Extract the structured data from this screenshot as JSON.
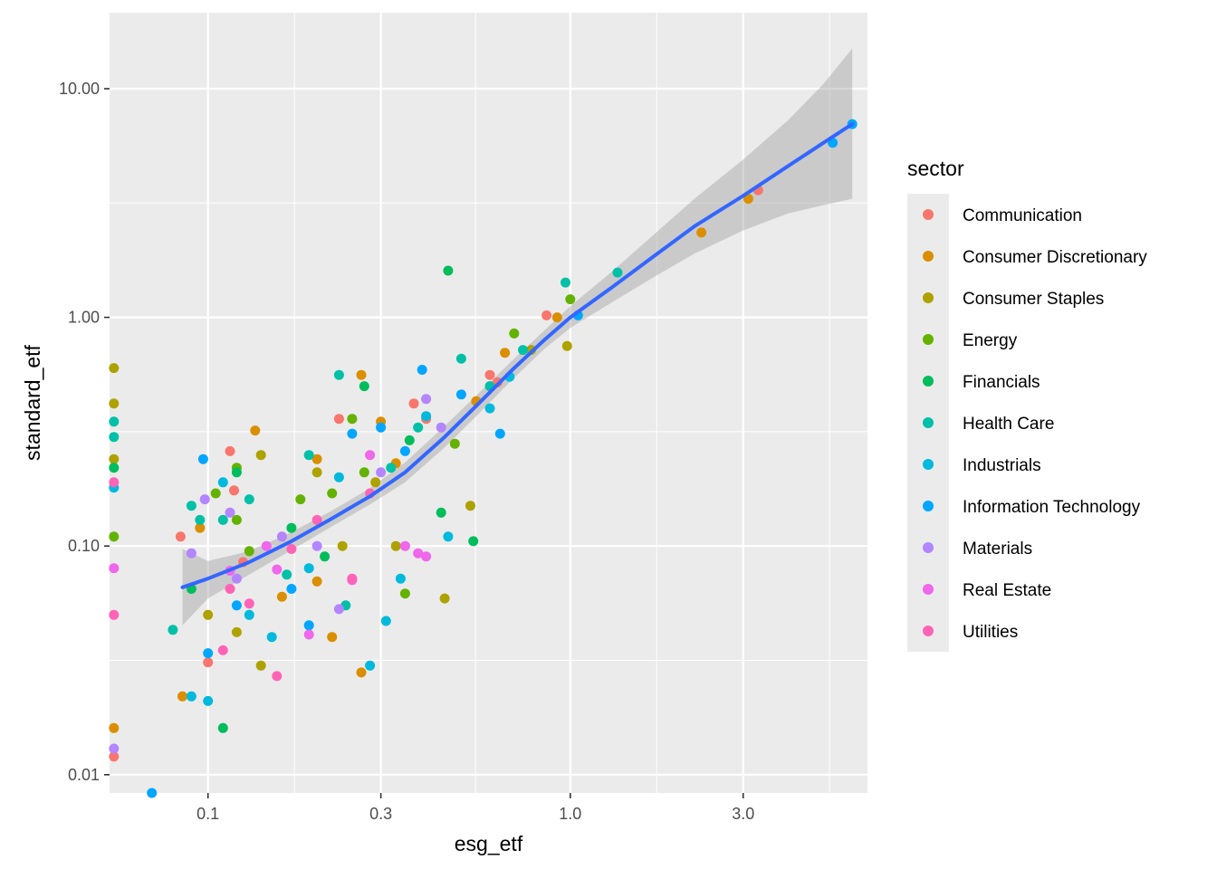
{
  "chart_data": {
    "type": "scatter",
    "xlabel": "esg_etf",
    "ylabel": "standard_etf",
    "x_scale": "log10",
    "y_scale": "log10",
    "xlim": [
      0.0535,
      6.61
    ],
    "ylim": [
      0.00832,
      21.5
    ],
    "x_ticks": [
      {
        "value": 0.1,
        "label": "0.1"
      },
      {
        "value": 0.3,
        "label": "0.3"
      },
      {
        "value": 1.0,
        "label": "1.0"
      },
      {
        "value": 3.0,
        "label": "3.0"
      }
    ],
    "y_ticks": [
      {
        "value": 0.01,
        "label": "0.01"
      },
      {
        "value": 0.1,
        "label": "0.10"
      },
      {
        "value": 1.0,
        "label": "1.00"
      },
      {
        "value": 10.0,
        "label": "10.00"
      }
    ],
    "grid": true,
    "background": "#ebebeb",
    "legend": {
      "title": "sector",
      "position": "right",
      "entries": [
        {
          "label": "Communication",
          "color": "#F8766D"
        },
        {
          "label": "Consumer Discretionary",
          "color": "#DB8E00"
        },
        {
          "label": "Consumer Staples",
          "color": "#AEA200"
        },
        {
          "label": "Energy",
          "color": "#64B200"
        },
        {
          "label": "Financials",
          "color": "#00BD5C"
        },
        {
          "label": "Health Care",
          "color": "#00C1A7"
        },
        {
          "label": "Industrials",
          "color": "#00BADE"
        },
        {
          "label": "Information Technology",
          "color": "#00A6FF"
        },
        {
          "label": "Materials",
          "color": "#B385FF"
        },
        {
          "label": "Real Estate",
          "color": "#EF67EB"
        },
        {
          "label": "Utilities",
          "color": "#FF63B6"
        }
      ]
    },
    "smooth": {
      "method": "loess",
      "color": "#3366FF",
      "band_color": "#999999",
      "points": [
        {
          "x": 0.085,
          "y": 0.066,
          "lo": 0.045,
          "hi": 0.097
        },
        {
          "x": 0.1,
          "y": 0.072,
          "lo": 0.059,
          "hi": 0.086
        },
        {
          "x": 0.13,
          "y": 0.085,
          "lo": 0.075,
          "hi": 0.095
        },
        {
          "x": 0.17,
          "y": 0.105,
          "lo": 0.096,
          "hi": 0.115
        },
        {
          "x": 0.22,
          "y": 0.132,
          "lo": 0.122,
          "hi": 0.143
        },
        {
          "x": 0.28,
          "y": 0.165,
          "lo": 0.152,
          "hi": 0.179
        },
        {
          "x": 0.35,
          "y": 0.21,
          "lo": 0.19,
          "hi": 0.232
        },
        {
          "x": 0.45,
          "y": 0.3,
          "lo": 0.27,
          "hi": 0.335
        },
        {
          "x": 0.55,
          "y": 0.41,
          "lo": 0.37,
          "hi": 0.455
        },
        {
          "x": 0.7,
          "y": 0.6,
          "lo": 0.545,
          "hi": 0.66
        },
        {
          "x": 0.85,
          "y": 0.8,
          "lo": 0.73,
          "hi": 0.88
        },
        {
          "x": 1.0,
          "y": 1.0,
          "lo": 0.9,
          "hi": 1.12
        },
        {
          "x": 1.3,
          "y": 1.35,
          "lo": 1.16,
          "hi": 1.58
        },
        {
          "x": 1.7,
          "y": 1.85,
          "lo": 1.5,
          "hi": 2.3
        },
        {
          "x": 2.2,
          "y": 2.5,
          "lo": 1.9,
          "hi": 3.3
        },
        {
          "x": 3.0,
          "y": 3.4,
          "lo": 2.4,
          "hi": 4.9
        },
        {
          "x": 4.0,
          "y": 4.6,
          "lo": 2.85,
          "hi": 7.3
        },
        {
          "x": 5.0,
          "y": 5.8,
          "lo": 3.1,
          "hi": 10.5
        },
        {
          "x": 6.0,
          "y": 7.0,
          "lo": 3.3,
          "hi": 15.0
        }
      ]
    },
    "series": [
      {
        "name": "Communication",
        "color": "#F8766D",
        "points": [
          {
            "x": 0.084,
            "y": 0.11
          },
          {
            "x": 0.115,
            "y": 0.26
          },
          {
            "x": 0.118,
            "y": 0.175
          },
          {
            "x": 0.1,
            "y": 0.031
          },
          {
            "x": 0.23,
            "y": 0.36
          },
          {
            "x": 0.37,
            "y": 0.42
          },
          {
            "x": 0.6,
            "y": 0.56
          },
          {
            "x": 0.63,
            "y": 0.52
          },
          {
            "x": 0.86,
            "y": 1.02
          },
          {
            "x": 3.3,
            "y": 3.6
          },
          {
            "x": 0.125,
            "y": 0.085
          },
          {
            "x": 0.4,
            "y": 0.36
          },
          {
            "x": 0.055,
            "y": 0.012
          }
        ]
      },
      {
        "name": "Consumer Discretionary",
        "color": "#DB8E00",
        "points": [
          {
            "x": 0.085,
            "y": 0.022
          },
          {
            "x": 0.095,
            "y": 0.12
          },
          {
            "x": 0.135,
            "y": 0.32
          },
          {
            "x": 0.16,
            "y": 0.06
          },
          {
            "x": 0.2,
            "y": 0.24
          },
          {
            "x": 0.2,
            "y": 0.07
          },
          {
            "x": 0.22,
            "y": 0.04
          },
          {
            "x": 0.265,
            "y": 0.028
          },
          {
            "x": 0.265,
            "y": 0.56
          },
          {
            "x": 0.3,
            "y": 0.35
          },
          {
            "x": 0.33,
            "y": 0.23
          },
          {
            "x": 0.55,
            "y": 0.43
          },
          {
            "x": 0.66,
            "y": 0.7
          },
          {
            "x": 0.92,
            "y": 1.0
          },
          {
            "x": 2.3,
            "y": 2.35
          },
          {
            "x": 3.1,
            "y": 3.3
          },
          {
            "x": 0.055,
            "y": 0.016
          }
        ]
      },
      {
        "name": "Consumer Staples",
        "color": "#AEA200",
        "points": [
          {
            "x": 0.1,
            "y": 0.05
          },
          {
            "x": 0.12,
            "y": 0.042
          },
          {
            "x": 0.14,
            "y": 0.25
          },
          {
            "x": 0.14,
            "y": 0.03
          },
          {
            "x": 0.2,
            "y": 0.21
          },
          {
            "x": 0.235,
            "y": 0.1
          },
          {
            "x": 0.29,
            "y": 0.19
          },
          {
            "x": 0.33,
            "y": 0.1
          },
          {
            "x": 0.45,
            "y": 0.059
          },
          {
            "x": 0.53,
            "y": 0.15
          },
          {
            "x": 0.78,
            "y": 0.72
          },
          {
            "x": 0.98,
            "y": 0.75
          },
          {
            "x": 0.055,
            "y": 0.6
          },
          {
            "x": 0.055,
            "y": 0.42
          },
          {
            "x": 0.055,
            "y": 0.24
          }
        ]
      },
      {
        "name": "Energy",
        "color": "#64B200",
        "points": [
          {
            "x": 0.105,
            "y": 0.17
          },
          {
            "x": 0.12,
            "y": 0.22
          },
          {
            "x": 0.12,
            "y": 0.13
          },
          {
            "x": 0.13,
            "y": 0.095
          },
          {
            "x": 0.18,
            "y": 0.16
          },
          {
            "x": 0.22,
            "y": 0.17
          },
          {
            "x": 0.25,
            "y": 0.36
          },
          {
            "x": 0.27,
            "y": 0.21
          },
          {
            "x": 0.35,
            "y": 0.062
          },
          {
            "x": 0.48,
            "y": 0.28
          },
          {
            "x": 0.7,
            "y": 0.85
          },
          {
            "x": 1.0,
            "y": 1.2
          },
          {
            "x": 0.055,
            "y": 0.11
          }
        ]
      },
      {
        "name": "Financials",
        "color": "#00BD5C",
        "points": [
          {
            "x": 0.09,
            "y": 0.065
          },
          {
            "x": 0.11,
            "y": 0.016
          },
          {
            "x": 0.12,
            "y": 0.21
          },
          {
            "x": 0.17,
            "y": 0.12
          },
          {
            "x": 0.21,
            "y": 0.09
          },
          {
            "x": 0.27,
            "y": 0.5
          },
          {
            "x": 0.36,
            "y": 0.29
          },
          {
            "x": 0.44,
            "y": 0.14
          },
          {
            "x": 0.46,
            "y": 1.6
          },
          {
            "x": 0.54,
            "y": 0.105
          },
          {
            "x": 0.055,
            "y": 0.22
          }
        ]
      },
      {
        "name": "Health Care",
        "color": "#00C1A7",
        "points": [
          {
            "x": 0.08,
            "y": 0.043
          },
          {
            "x": 0.09,
            "y": 0.15
          },
          {
            "x": 0.095,
            "y": 0.13
          },
          {
            "x": 0.11,
            "y": 0.13
          },
          {
            "x": 0.13,
            "y": 0.16
          },
          {
            "x": 0.165,
            "y": 0.075
          },
          {
            "x": 0.19,
            "y": 0.25
          },
          {
            "x": 0.23,
            "y": 0.56
          },
          {
            "x": 0.24,
            "y": 0.055
          },
          {
            "x": 0.32,
            "y": 0.22
          },
          {
            "x": 0.38,
            "y": 0.33
          },
          {
            "x": 0.5,
            "y": 0.66
          },
          {
            "x": 0.6,
            "y": 0.5
          },
          {
            "x": 0.74,
            "y": 0.72
          },
          {
            "x": 0.97,
            "y": 1.42
          },
          {
            "x": 1.35,
            "y": 1.57
          },
          {
            "x": 0.055,
            "y": 0.35
          },
          {
            "x": 0.055,
            "y": 0.3
          }
        ]
      },
      {
        "name": "Industrials",
        "color": "#00BADE",
        "points": [
          {
            "x": 0.09,
            "y": 0.022
          },
          {
            "x": 0.1,
            "y": 0.021
          },
          {
            "x": 0.11,
            "y": 0.19
          },
          {
            "x": 0.13,
            "y": 0.05
          },
          {
            "x": 0.15,
            "y": 0.04
          },
          {
            "x": 0.19,
            "y": 0.08
          },
          {
            "x": 0.23,
            "y": 0.2
          },
          {
            "x": 0.28,
            "y": 0.03
          },
          {
            "x": 0.31,
            "y": 0.047
          },
          {
            "x": 0.34,
            "y": 0.072
          },
          {
            "x": 0.4,
            "y": 0.37
          },
          {
            "x": 0.46,
            "y": 0.11
          },
          {
            "x": 0.6,
            "y": 0.4
          },
          {
            "x": 0.68,
            "y": 0.55
          },
          {
            "x": 0.055,
            "y": 0.18
          }
        ]
      },
      {
        "name": "Information Technology",
        "color": "#00A6FF",
        "points": [
          {
            "x": 0.097,
            "y": 0.24
          },
          {
            "x": 0.1,
            "y": 0.034
          },
          {
            "x": 0.12,
            "y": 0.055
          },
          {
            "x": 0.17,
            "y": 0.065
          },
          {
            "x": 0.19,
            "y": 0.045
          },
          {
            "x": 0.25,
            "y": 0.31
          },
          {
            "x": 0.3,
            "y": 0.33
          },
          {
            "x": 0.35,
            "y": 0.26
          },
          {
            "x": 0.39,
            "y": 0.59
          },
          {
            "x": 0.5,
            "y": 0.46
          },
          {
            "x": 0.64,
            "y": 0.31
          },
          {
            "x": 1.05,
            "y": 1.02
          },
          {
            "x": 5.3,
            "y": 5.8
          },
          {
            "x": 6.0,
            "y": 7.0
          },
          {
            "x": 0.07,
            "y": 0.008
          }
        ]
      },
      {
        "name": "Materials",
        "color": "#B385FF",
        "points": [
          {
            "x": 0.09,
            "y": 0.093
          },
          {
            "x": 0.098,
            "y": 0.16
          },
          {
            "x": 0.115,
            "y": 0.14
          },
          {
            "x": 0.12,
            "y": 0.072
          },
          {
            "x": 0.16,
            "y": 0.11
          },
          {
            "x": 0.2,
            "y": 0.1
          },
          {
            "x": 0.23,
            "y": 0.053
          },
          {
            "x": 0.3,
            "y": 0.21
          },
          {
            "x": 0.4,
            "y": 0.44
          },
          {
            "x": 0.44,
            "y": 0.33
          },
          {
            "x": 0.055,
            "y": 0.013
          }
        ]
      },
      {
        "name": "Real Estate",
        "color": "#EF67EB",
        "points": [
          {
            "x": 0.115,
            "y": 0.078
          },
          {
            "x": 0.145,
            "y": 0.1
          },
          {
            "x": 0.155,
            "y": 0.079
          },
          {
            "x": 0.19,
            "y": 0.041
          },
          {
            "x": 0.25,
            "y": 0.071
          },
          {
            "x": 0.28,
            "y": 0.25
          },
          {
            "x": 0.35,
            "y": 0.1
          },
          {
            "x": 0.38,
            "y": 0.093
          },
          {
            "x": 0.4,
            "y": 0.09
          },
          {
            "x": 0.055,
            "y": 0.08
          }
        ]
      },
      {
        "name": "Utilities",
        "color": "#FF63B6",
        "points": [
          {
            "x": 0.11,
            "y": 0.035
          },
          {
            "x": 0.115,
            "y": 0.065
          },
          {
            "x": 0.13,
            "y": 0.056
          },
          {
            "x": 0.155,
            "y": 0.027
          },
          {
            "x": 0.17,
            "y": 0.097
          },
          {
            "x": 0.2,
            "y": 0.13
          },
          {
            "x": 0.25,
            "y": 0.072
          },
          {
            "x": 0.28,
            "y": 0.17
          },
          {
            "x": 0.055,
            "y": 0.19
          },
          {
            "x": 0.055,
            "y": 0.05
          }
        ]
      }
    ]
  }
}
